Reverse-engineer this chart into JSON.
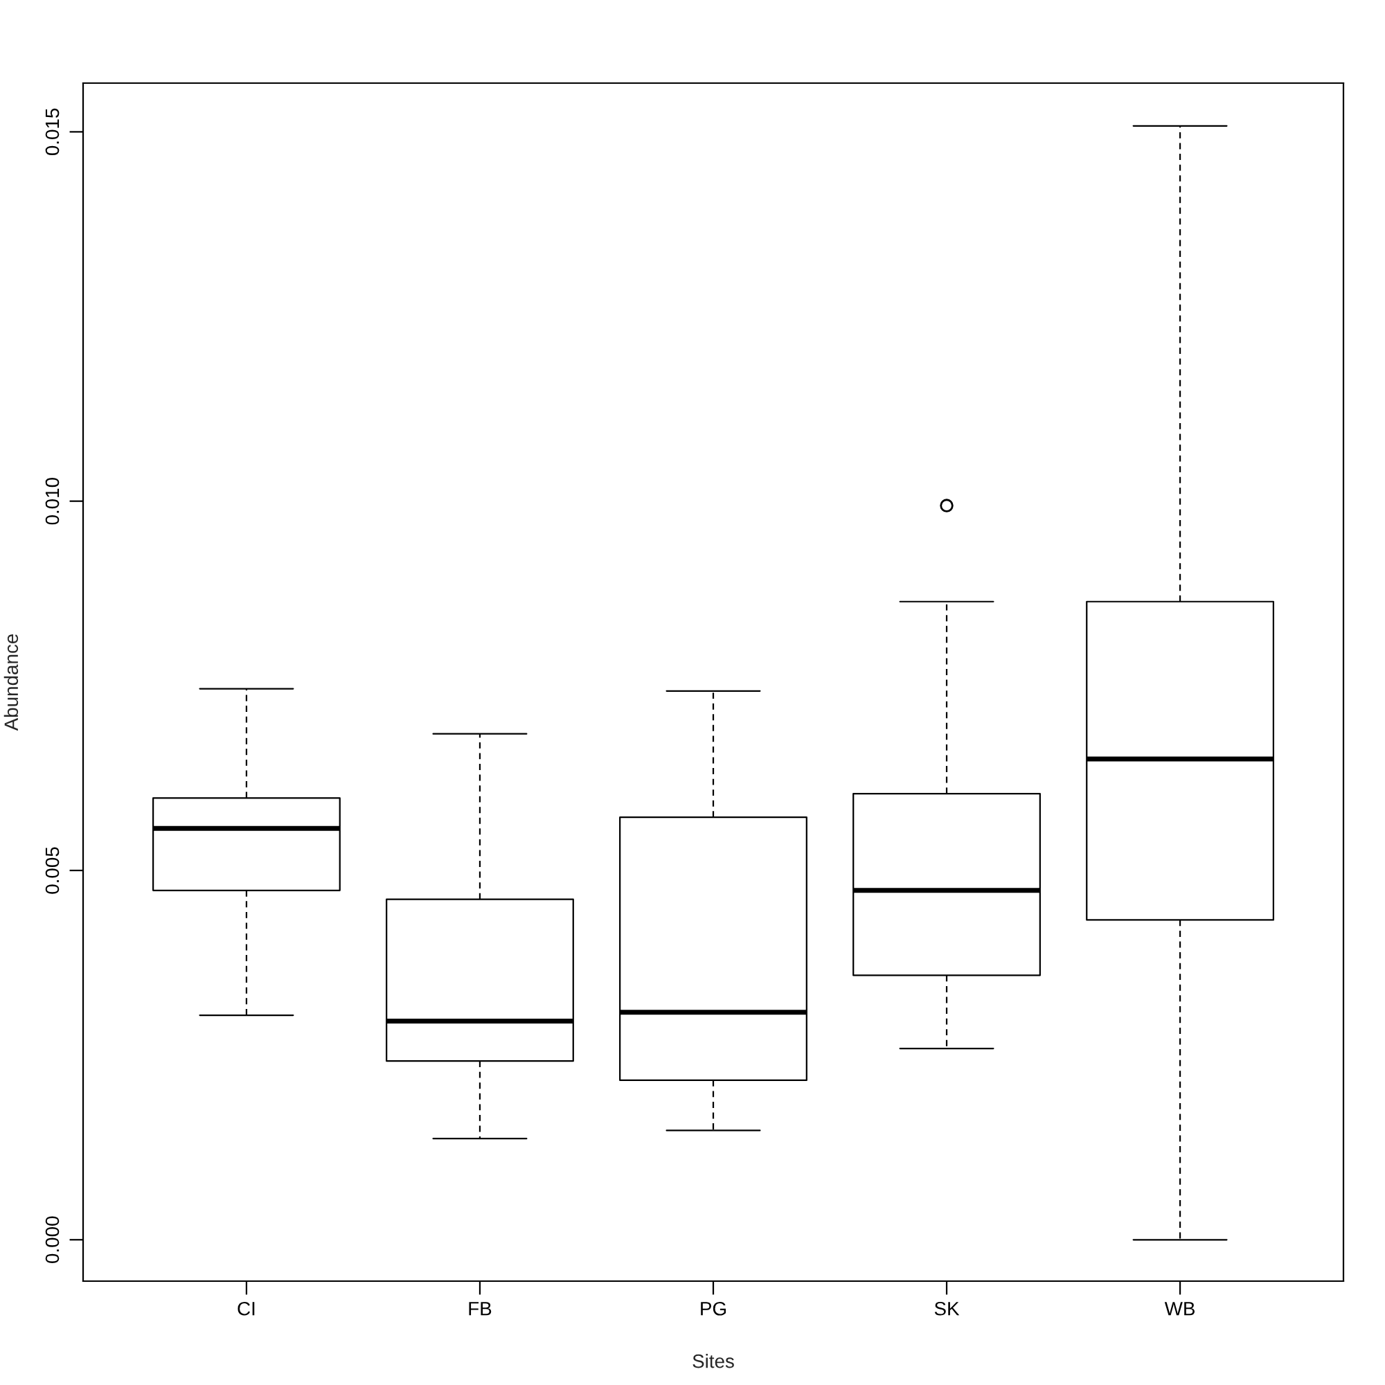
{
  "chart_data": {
    "type": "box",
    "xlabel": "Sites",
    "ylabel": "Abundance",
    "categories": [
      "CI",
      "FB",
      "PG",
      "SK",
      "WB"
    ],
    "boxes": [
      {
        "low": 0.00304,
        "q1": 0.00473,
        "median": 0.00557,
        "q3": 0.00598,
        "high": 0.00746
      },
      {
        "low": 0.00137,
        "q1": 0.00242,
        "median": 0.00296,
        "q3": 0.00461,
        "high": 0.00685
      },
      {
        "low": 0.00148,
        "q1": 0.00216,
        "median": 0.00308,
        "q3": 0.00572,
        "high": 0.00743
      },
      {
        "low": 0.00259,
        "q1": 0.00358,
        "median": 0.00473,
        "q3": 0.00604,
        "high": 0.00864,
        "outliers": [
          0.00994
        ]
      },
      {
        "low": 0.0,
        "q1": 0.00433,
        "median": 0.00651,
        "q3": 0.00864,
        "high": 0.01508
      }
    ],
    "ylim": [
      -0.00056,
      0.01566
    ],
    "yticks": [
      {
        "value": 0,
        "label": "0.000"
      },
      {
        "value": 0.005,
        "label": "0.005"
      },
      {
        "value": 0.01,
        "label": "0.010"
      },
      {
        "value": 0.015,
        "label": "0.015"
      }
    ],
    "grid": false,
    "legend": false
  }
}
